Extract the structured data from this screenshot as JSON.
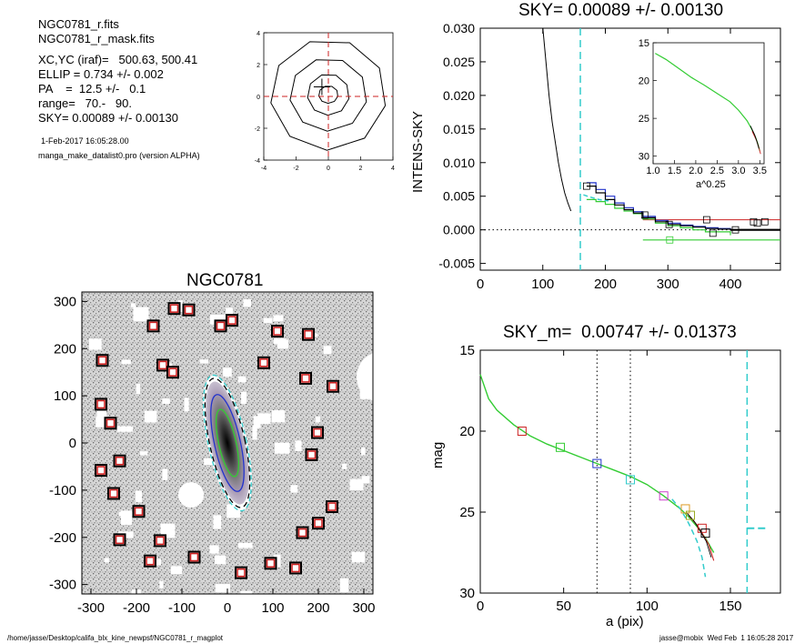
{
  "info": {
    "lines": [
      "NGC0781_r.fits",
      "NGC0781_r_mask.fits",
      "XC,YC (iraf)=   500.63, 500.41",
      "ELLIP = 0.734 +/- 0.002",
      "PA    =  12.5 +/-   0.1",
      "range=   70.-   90.",
      "SKY= 0.00089 +/- 0.00130"
    ],
    "date": "1-Feb-2017 16:05:28.00",
    "program": "manga_make_datalist0.pro (version ALPHA)"
  },
  "footer": {
    "left": "/home/jasse/Desktop/califa_blx_kine_newpsf/NGC0781_r_magplot",
    "right": "jasse@mobix  Wed Feb  1 16:05:28 2017"
  },
  "colors": {
    "green": "#33cc33",
    "red": "#cc2222",
    "blue": "#2233cc",
    "cyan": "#33cccc",
    "black": "#000000"
  },
  "chart_data": [
    {
      "id": "contour",
      "type": "contour",
      "xlim": [
        -4,
        4
      ],
      "ylim": [
        -4,
        4
      ],
      "xticks": [
        -4,
        -2,
        0,
        2,
        4
      ],
      "yticks": [
        -4,
        -2,
        0,
        2,
        4
      ],
      "tick_labels_x": [
        "-4",
        "-2",
        "0",
        "2",
        "4"
      ],
      "tick_labels_y": [
        "-4",
        "-2",
        "0",
        "2",
        "4"
      ],
      "center": [
        0,
        0
      ],
      "crosshair": [
        -0.4,
        0.6
      ]
    },
    {
      "id": "sky-profile",
      "type": "line",
      "title": "SKY= 0.00089 +/- 0.00130",
      "ylabel": "INTENS-SKY",
      "xlim": [
        0,
        480
      ],
      "ylim": [
        -0.006,
        0.03
      ],
      "xticks": [
        0,
        100,
        200,
        300,
        400
      ],
      "yticks": [
        -0.005,
        0,
        0.005,
        0.01,
        0.015,
        0.02,
        0.025,
        0.03
      ],
      "ytick_labels": [
        "-0.005",
        "0.000",
        "0.005",
        "0.010",
        "0.015",
        "0.020",
        "0.025",
        "0.030"
      ],
      "vline": 160,
      "inner_curve": [
        [
          100,
          0.031
        ],
        [
          105,
          0.025
        ],
        [
          110,
          0.02
        ],
        [
          115,
          0.016
        ],
        [
          120,
          0.013
        ],
        [
          125,
          0.01
        ],
        [
          130,
          0.0075
        ],
        [
          135,
          0.0055
        ],
        [
          140,
          0.004
        ],
        [
          145,
          0.0028
        ]
      ],
      "step_black": [
        [
          170,
          0.0065
        ],
        [
          185,
          0.0055
        ],
        [
          200,
          0.0045
        ],
        [
          215,
          0.0037
        ],
        [
          230,
          0.003
        ],
        [
          245,
          0.0025
        ],
        [
          260,
          0.0018
        ],
        [
          280,
          0.0012
        ],
        [
          300,
          0.0008
        ],
        [
          320,
          0.0006
        ],
        [
          340,
          0.0004
        ],
        [
          360,
          0.0002
        ],
        [
          380,
          0.0001
        ],
        [
          400,
          0
        ],
        [
          480,
          0
        ]
      ],
      "step_blue": [
        [
          170,
          0.007
        ],
        [
          185,
          0.006
        ],
        [
          200,
          0.005
        ],
        [
          215,
          0.004
        ],
        [
          230,
          0.0033
        ],
        [
          245,
          0.0027
        ],
        [
          260,
          0.002
        ],
        [
          280,
          0.0014
        ],
        [
          300,
          0.001
        ],
        [
          320,
          0.0007
        ],
        [
          340,
          0.0005
        ],
        [
          360,
          0.0003
        ],
        [
          380,
          0.0002
        ],
        [
          400,
          0.0001
        ]
      ],
      "step_green": [
        [
          170,
          0.0045
        ],
        [
          185,
          0.0042
        ],
        [
          200,
          0.0038
        ],
        [
          215,
          0.0032
        ],
        [
          230,
          0.0028
        ],
        [
          245,
          0.0024
        ],
        [
          260,
          0.0016
        ],
        [
          280,
          0.001
        ],
        [
          300,
          0.0006
        ],
        [
          320,
          0.0003
        ],
        [
          340,
          0
        ],
        [
          360,
          -0.0003
        ],
        [
          400,
          -0.0008
        ]
      ],
      "red_line": [
        [
          260,
          0.0015
        ],
        [
          480,
          0.0015
        ]
      ],
      "green_line": [
        [
          260,
          -0.0015
        ],
        [
          480,
          -0.0015
        ]
      ],
      "cyan_dash": [
        [
          165,
          0.0052
        ],
        [
          175,
          0.0049
        ],
        [
          190,
          0.0045
        ],
        [
          205,
          0.0043
        ]
      ],
      "markers": [
        [
          170,
          0.0065
        ],
        [
          263,
          0.0022
        ],
        [
          302,
          0.0008
        ],
        [
          362,
          0.0015
        ],
        [
          372,
          -0.0005
        ],
        [
          408,
          0
        ],
        [
          455,
          0.0012
        ],
        [
          437,
          0.0012
        ],
        [
          443,
          0.001
        ]
      ],
      "green_markers": [
        [
          303,
          -0.0015
        ]
      ],
      "inset": {
        "xlabel": "a^0.25",
        "xlim": [
          1.0,
          3.6
        ],
        "ylim": [
          15,
          31
        ],
        "xticks": [
          1.0,
          1.5,
          2.0,
          2.5,
          3.0,
          3.5
        ],
        "xtick_labels": [
          "1.0",
          "1.5",
          "2.0",
          "2.5",
          "3.0",
          "3.5"
        ],
        "yticks": [
          15,
          20,
          25,
          30
        ],
        "ytick_labels": [
          "15",
          "20",
          "25",
          "30"
        ],
        "curve": [
          [
            1.05,
            16.4
          ],
          [
            1.3,
            17.2
          ],
          [
            1.6,
            18.4
          ],
          [
            1.9,
            19.6
          ],
          [
            2.2,
            20.6
          ],
          [
            2.5,
            21.7
          ],
          [
            2.8,
            22.8
          ],
          [
            3.0,
            23.9
          ],
          [
            3.2,
            25.3
          ],
          [
            3.3,
            26.3
          ],
          [
            3.4,
            27.5
          ],
          [
            3.45,
            28.3
          ],
          [
            3.5,
            29.3
          ]
        ]
      }
    },
    {
      "id": "galaxy-image",
      "type": "image",
      "title": "NGC0781",
      "xlim": [
        -320,
        320
      ],
      "ylim": [
        -320,
        320
      ],
      "xticks": [
        -300,
        -200,
        -100,
        0,
        100,
        200,
        300
      ],
      "yticks": [
        -300,
        -200,
        -100,
        0,
        100,
        200,
        300
      ],
      "squares": [
        [
          -275,
          175
        ],
        [
          -278,
          82
        ],
        [
          -257,
          42
        ],
        [
          -278,
          -58
        ],
        [
          -237,
          -38
        ],
        [
          -250,
          -107
        ],
        [
          -195,
          -145
        ],
        [
          -237,
          -205
        ],
        [
          -148,
          -207
        ],
        [
          -170,
          -250
        ],
        [
          -73,
          -242
        ],
        [
          30,
          -275
        ],
        [
          95,
          -255
        ],
        [
          150,
          -265
        ],
        [
          165,
          -190
        ],
        [
          200,
          -170
        ],
        [
          230,
          -135
        ],
        [
          185,
          -25
        ],
        [
          198,
          22
        ],
        [
          232,
          120
        ],
        [
          172,
          137
        ],
        [
          80,
          170
        ],
        [
          110,
          237
        ],
        [
          178,
          230
        ],
        [
          -15,
          248
        ],
        [
          10,
          260
        ],
        [
          -85,
          282
        ],
        [
          -117,
          285
        ],
        [
          -163,
          248
        ],
        [
          -142,
          165
        ],
        [
          -120,
          150
        ]
      ],
      "ellipse": {
        "center": [
          0,
          0
        ],
        "semi_major": 140,
        "semi_minor": 38,
        "pa_deg": 12.5
      }
    },
    {
      "id": "mag-profile",
      "type": "line",
      "title": "SKY_m=  0.00747 +/- 0.01373",
      "xlabel": "a (pix)",
      "ylabel": "mag",
      "xlim": [
        0,
        180
      ],
      "ylim": [
        30,
        15
      ],
      "xticks": [
        0,
        50,
        100,
        150
      ],
      "yticks": [
        15,
        20,
        25,
        30
      ],
      "vlines_dotted": [
        70,
        90
      ],
      "vline_dash": 160,
      "hdash": [
        [
          160,
          26
        ],
        [
          172,
          26
        ]
      ],
      "curve_green": [
        [
          0,
          16.5
        ],
        [
          5,
          18.0
        ],
        [
          10,
          18.7
        ],
        [
          20,
          19.6
        ],
        [
          30,
          20.3
        ],
        [
          40,
          20.8
        ],
        [
          50,
          21.2
        ],
        [
          60,
          21.6
        ],
        [
          70,
          22.0
        ],
        [
          80,
          22.4
        ],
        [
          90,
          22.8
        ],
        [
          100,
          23.3
        ],
        [
          110,
          24.0
        ],
        [
          120,
          24.8
        ],
        [
          125,
          25.3
        ],
        [
          130,
          25.9
        ],
        [
          135,
          26.6
        ],
        [
          140,
          27.5
        ]
      ],
      "curve_cyan_dash": [
        [
          115,
          24.2
        ],
        [
          120,
          24.8
        ],
        [
          125,
          25.7
        ],
        [
          130,
          26.8
        ],
        [
          133,
          27.8
        ],
        [
          135,
          29.0
        ]
      ],
      "red_tail": [
        [
          125,
          25.2
        ],
        [
          130,
          25.8
        ],
        [
          133,
          26.3
        ],
        [
          137,
          27.0
        ],
        [
          140,
          28.0
        ]
      ],
      "markers": [
        {
          "x": 25,
          "y": 20.0,
          "color": "red"
        },
        {
          "x": 48,
          "y": 21.0,
          "color": "green"
        },
        {
          "x": 70,
          "y": 22.0,
          "color": "blue"
        },
        {
          "x": 90,
          "y": 23.0,
          "color": "cyan"
        },
        {
          "x": 110,
          "y": 24.0,
          "color": "#cc44cc"
        },
        {
          "x": 123,
          "y": 24.8,
          "color": "#dd9922"
        },
        {
          "x": 126,
          "y": 25.2,
          "color": "#99aa22"
        },
        {
          "x": 133,
          "y": 26.0,
          "color": "red"
        },
        {
          "x": 135,
          "y": 26.3,
          "color": "black"
        }
      ]
    }
  ]
}
